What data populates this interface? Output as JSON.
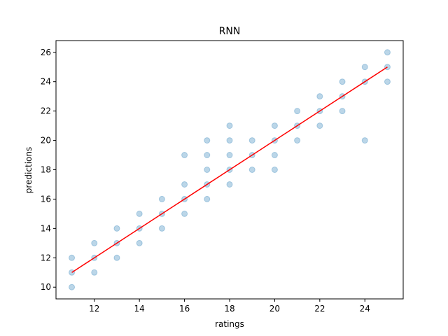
{
  "chart_data": {
    "type": "scatter",
    "title": "RNN",
    "xlabel": "ratings",
    "ylabel": "predictions",
    "xlim": [
      10.3,
      25.7
    ],
    "ylim": [
      9.2,
      26.8
    ],
    "xticks": [
      12,
      14,
      16,
      18,
      20,
      22,
      24
    ],
    "yticks": [
      10,
      12,
      14,
      16,
      18,
      20,
      22,
      24,
      26
    ],
    "grid": false,
    "series": [
      {
        "color": "#1f77b4",
        "opacity": 0.3,
        "points": [
          [
            11,
            10
          ],
          [
            11,
            11
          ],
          [
            11,
            12
          ],
          [
            12,
            11
          ],
          [
            12,
            12
          ],
          [
            12,
            13
          ],
          [
            13,
            12
          ],
          [
            13,
            13
          ],
          [
            13,
            14
          ],
          [
            14,
            13
          ],
          [
            14,
            14
          ],
          [
            14,
            15
          ],
          [
            15,
            14
          ],
          [
            15,
            15
          ],
          [
            15,
            16
          ],
          [
            16,
            15
          ],
          [
            16,
            16
          ],
          [
            16,
            17
          ],
          [
            16,
            19
          ],
          [
            17,
            16
          ],
          [
            17,
            17
          ],
          [
            17,
            18
          ],
          [
            17,
            19
          ],
          [
            17,
            20
          ],
          [
            18,
            17
          ],
          [
            18,
            18
          ],
          [
            18,
            19
          ],
          [
            18,
            20
          ],
          [
            18,
            21
          ],
          [
            19,
            18
          ],
          [
            19,
            19
          ],
          [
            19,
            20
          ],
          [
            20,
            18
          ],
          [
            20,
            19
          ],
          [
            20,
            20
          ],
          [
            20,
            21
          ],
          [
            21,
            20
          ],
          [
            21,
            21
          ],
          [
            21,
            22
          ],
          [
            22,
            21
          ],
          [
            22,
            22
          ],
          [
            22,
            23
          ],
          [
            23,
            22
          ],
          [
            23,
            23
          ],
          [
            23,
            24
          ],
          [
            24,
            20
          ],
          [
            24,
            24
          ],
          [
            24,
            25
          ],
          [
            25,
            24
          ],
          [
            25,
            25
          ],
          [
            25,
            26
          ]
        ]
      }
    ],
    "fit_line": {
      "color": "#ff0000",
      "x": [
        11,
        25
      ],
      "y": [
        11,
        25
      ]
    }
  }
}
